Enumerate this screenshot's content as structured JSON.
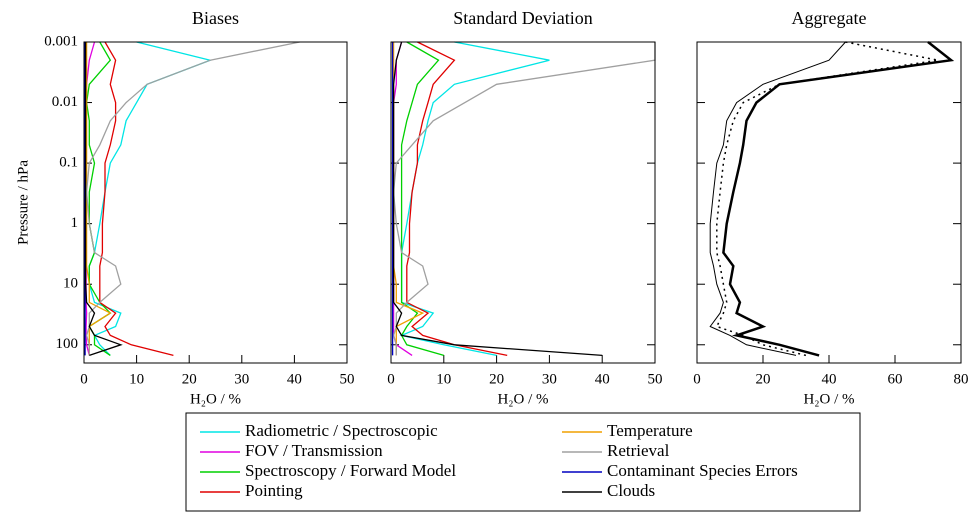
{
  "chart_data": [
    {
      "type": "line",
      "title": "Biases",
      "xlabel": "H₂O / %",
      "ylabel": "Pressure / hPa",
      "xlim": [
        0,
        50
      ],
      "xticks": [
        0,
        10,
        20,
        30,
        40,
        50
      ],
      "ylim": [
        0.001,
        200
      ],
      "ylog": true,
      "y_inverted": true,
      "yticks": [
        0.001,
        0.01,
        0.1,
        1,
        10,
        100
      ],
      "ytick_labels": true,
      "levels": [
        0.001,
        0.002,
        0.005,
        0.01,
        0.02,
        0.05,
        0.1,
        0.3,
        1,
        3,
        5,
        10,
        20,
        30,
        50,
        70,
        100,
        150
      ],
      "series": [
        {
          "name": "Radiometric / Spectroscopic",
          "color": "#00e5e5",
          "values": [
            10,
            24,
            12,
            10,
            8,
            7,
            5,
            4,
            3,
            2,
            1,
            1,
            2,
            7,
            6,
            2,
            3,
            5
          ]
        },
        {
          "name": "FOV / Transmission",
          "color": "#e000e0",
          "values": [
            2,
            1,
            0.5,
            0.4,
            0.4,
            0.4,
            0.4,
            0.4,
            0.4,
            0.4,
            0.4,
            0.4,
            0.4,
            0.5,
            0.4,
            0.4,
            0.5,
            1
          ]
        },
        {
          "name": "Spectroscopy / Forward Model",
          "color": "#00d000",
          "values": [
            3,
            5,
            1,
            0.5,
            1,
            1,
            2,
            1,
            1,
            2,
            1,
            1,
            3,
            5,
            1,
            2,
            2,
            5
          ]
        },
        {
          "name": "Pointing",
          "color": "#e00000",
          "values": [
            4,
            6,
            5,
            6,
            6,
            5,
            4,
            4,
            3.5,
            3.5,
            3,
            3,
            3,
            6,
            4,
            5,
            9,
            17
          ]
        },
        {
          "name": "Temperature",
          "color": "#f0a000",
          "values": [
            0.5,
            0.5,
            0.5,
            0.5,
            0.5,
            0.5,
            0.5,
            0.5,
            0.5,
            0.5,
            0.5,
            1,
            1,
            5,
            1,
            1,
            1,
            1
          ]
        },
        {
          "name": "Retrieval",
          "color": "#a0a0a0",
          "values": [
            41,
            24,
            12,
            8,
            5,
            3,
            1,
            0.5,
            1,
            2,
            6,
            7,
            3,
            1,
            1,
            0.5,
            1,
            1
          ]
        },
        {
          "name": "Contaminant Species Errors",
          "color": "#0000c0",
          "values": [
            0.2,
            0.2,
            0.2,
            0.2,
            0.2,
            0.2,
            0.2,
            0.2,
            0.2,
            0.2,
            0.2,
            0.2,
            0.2,
            0.2,
            0.2,
            0.2,
            0.2,
            0.2
          ]
        },
        {
          "name": "Clouds",
          "color": "#000000",
          "values": [
            0.3,
            0.3,
            0.3,
            0.3,
            0.3,
            0.3,
            0.3,
            0.3,
            0.3,
            0.3,
            0.3,
            0.3,
            0.5,
            2,
            1,
            2,
            7,
            1
          ]
        }
      ]
    },
    {
      "type": "line",
      "title": "Standard Deviation",
      "xlabel": "H₂O / %",
      "xlim": [
        0,
        50
      ],
      "xticks": [
        0,
        10,
        20,
        30,
        40,
        50
      ],
      "ylim": [
        0.001,
        200
      ],
      "ylog": true,
      "y_inverted": true,
      "yticks": [
        0.001,
        0.01,
        0.1,
        1,
        10,
        100
      ],
      "ytick_labels": false,
      "levels": [
        0.001,
        0.002,
        0.005,
        0.01,
        0.02,
        0.05,
        0.1,
        0.3,
        1,
        3,
        5,
        10,
        20,
        30,
        50,
        70,
        100,
        150
      ],
      "series": [
        {
          "color": "#00e5e5",
          "values": [
            12,
            30,
            12,
            8,
            7,
            6,
            5,
            4,
            3,
            2,
            2,
            2,
            2,
            8,
            6,
            2,
            10,
            20
          ]
        },
        {
          "color": "#e000e0",
          "values": [
            2,
            1,
            1,
            0.5,
            0.5,
            0.5,
            0.5,
            0.5,
            0.5,
            0.5,
            0.5,
            0.5,
            0.5,
            0.5,
            0.5,
            0.5,
            1,
            4
          ]
        },
        {
          "color": "#00d000",
          "values": [
            3,
            9,
            5,
            4,
            3,
            2,
            2,
            2,
            2,
            2,
            2,
            2,
            2,
            5,
            3,
            2,
            3,
            10
          ]
        },
        {
          "color": "#e00000",
          "values": [
            5,
            12,
            8,
            7,
            6,
            5,
            5,
            4,
            3.5,
            3.5,
            3,
            3,
            3,
            7,
            4,
            6,
            12,
            22
          ]
        },
        {
          "color": "#f0a000",
          "values": [
            0.5,
            0.5,
            0.5,
            0.5,
            0.5,
            0.5,
            0.5,
            0.5,
            0.5,
            0.5,
            0.5,
            1,
            1,
            6,
            1,
            1,
            1,
            1
          ]
        },
        {
          "color": "#a0a0a0",
          "values": [
            50,
            50,
            20,
            14,
            8,
            4,
            1,
            0.5,
            1,
            2,
            6,
            7,
            3,
            1,
            1,
            0.5,
            1,
            1
          ]
        },
        {
          "color": "#0000c0",
          "values": [
            0.3,
            0.3,
            0.3,
            0.3,
            0.3,
            0.3,
            0.3,
            0.3,
            0.3,
            0.3,
            0.3,
            0.3,
            0.3,
            0.3,
            0.3,
            0.3,
            0.3,
            0.3
          ]
        },
        {
          "color": "#000000",
          "values": [
            2,
            1,
            0.5,
            0.5,
            0.5,
            0.5,
            0.5,
            0.5,
            0.5,
            0.5,
            0.5,
            0.5,
            0.5,
            2,
            1,
            2,
            12,
            40
          ]
        }
      ]
    },
    {
      "type": "line",
      "title": "Aggregate",
      "xlabel": "H₂O / %",
      "xlim": [
        0,
        80
      ],
      "xticks": [
        0,
        20,
        40,
        60,
        80
      ],
      "ylim": [
        0.001,
        200
      ],
      "ylog": true,
      "y_inverted": true,
      "yticks": [
        0.001,
        0.01,
        0.1,
        1,
        10,
        100
      ],
      "ytick_labels": false,
      "levels": [
        0.001,
        0.002,
        0.005,
        0.01,
        0.02,
        0.05,
        0.1,
        0.3,
        1,
        3,
        5,
        10,
        20,
        30,
        50,
        70,
        100,
        150
      ],
      "series": [
        {
          "color": "#000000",
          "line_width": 2.5,
          "values": [
            70,
            77,
            25,
            18,
            15,
            14,
            13,
            11,
            9,
            8,
            11,
            10,
            13,
            12,
            20,
            12,
            25,
            37
          ]
        },
        {
          "color": "#000000",
          "line_width": 1,
          "values": [
            45,
            40,
            20,
            12,
            9,
            8,
            6,
            5,
            4,
            4,
            5,
            6,
            8,
            7,
            4,
            10,
            15,
            30
          ]
        },
        {
          "color": "#000000",
          "line_width": 1.5,
          "line_style": "dotted",
          "values": [
            45,
            73,
            25,
            14,
            11,
            9,
            8,
            7,
            6,
            6,
            7,
            8,
            9,
            8,
            6,
            14,
            20,
            33
          ]
        }
      ]
    }
  ]
}
